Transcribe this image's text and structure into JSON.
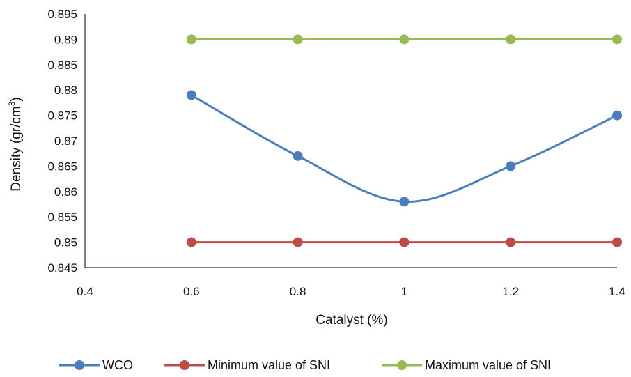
{
  "chart_data": {
    "type": "line",
    "x": [
      0.6,
      0.8,
      1,
      1.2,
      1.4
    ],
    "series": [
      {
        "name": "WCO",
        "values": [
          0.879,
          0.867,
          0.858,
          0.865,
          0.875
        ],
        "color": "#4a7ebb",
        "smooth": true
      },
      {
        "name": "Minimum value of SNI",
        "values": [
          0.85,
          0.85,
          0.85,
          0.85,
          0.85
        ],
        "color": "#be4b48",
        "smooth": false
      },
      {
        "name": "Maximum value of SNI",
        "values": [
          0.89,
          0.89,
          0.89,
          0.89,
          0.89
        ],
        "color": "#98b954",
        "smooth": false
      }
    ],
    "xlabel": "Catalyst (%)",
    "ylabel_main": "Density (gr/cm",
    "ylabel_sup": "3",
    "ylabel_end": ")",
    "xlim": [
      0.4,
      1.4
    ],
    "ylim": [
      0.845,
      0.895
    ],
    "x_ticks": [
      0.4,
      0.6,
      0.8,
      1,
      1.2,
      1.4
    ],
    "y_ticks": [
      0.845,
      0.85,
      0.855,
      0.86,
      0.865,
      0.87,
      0.875,
      0.88,
      0.885,
      0.89,
      0.895
    ],
    "x_tick_labels": [
      "0.4",
      "0.6",
      "0.8",
      "1",
      "1.2",
      "1.4"
    ],
    "y_tick_labels": [
      "0.845",
      "0.85",
      "0.855",
      "0.86",
      "0.865",
      "0.87",
      "0.875",
      "0.88",
      "0.885",
      "0.89",
      "0.895"
    ],
    "grid": false,
    "legend_position": "bottom"
  }
}
